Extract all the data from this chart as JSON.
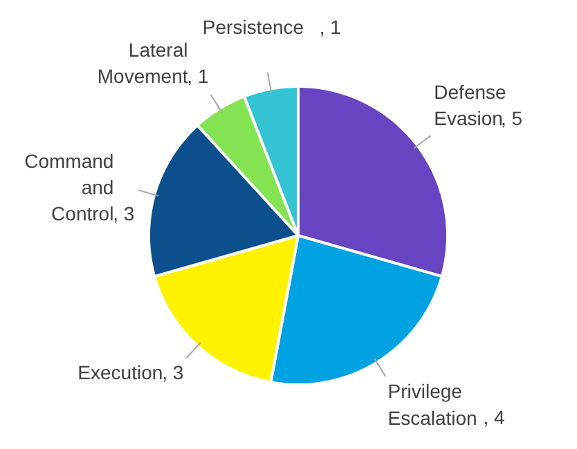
{
  "chart_data": {
    "type": "pie",
    "categories": [
      "Defense Evasion",
      "Privilege Escalation",
      "Execution",
      "Command and Control",
      "Lateral Movement",
      "Persistence"
    ],
    "values": [
      5,
      4,
      3,
      3,
      1,
      1
    ],
    "value_labels": [
      ", 5",
      ", 4",
      ", 3",
      ", 3",
      ", 1",
      ", 1"
    ],
    "colors": [
      "#6744c2",
      "#00a2e2",
      "#fff200",
      "#0b4f8c",
      "#84e352",
      "#33c3d3"
    ],
    "data_labels": true
  }
}
